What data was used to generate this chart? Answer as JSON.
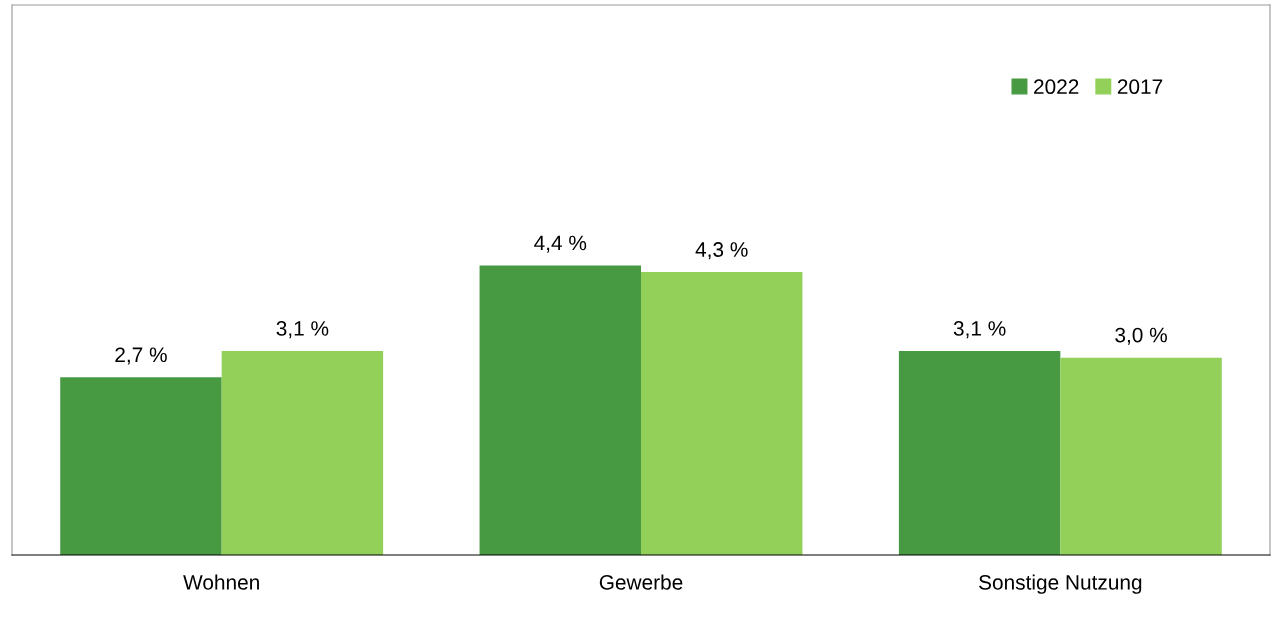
{
  "chart_data": {
    "type": "bar",
    "categories": [
      "Wohnen",
      "Gewerbe",
      "Sonstige Nutzung"
    ],
    "series": [
      {
        "name": "2022",
        "color": "#479a41",
        "values": [
          2.7,
          4.4,
          3.1
        ],
        "value_labels": [
          "2,7 %",
          "4,4 %",
          "3,1 %"
        ]
      },
      {
        "name": "2017",
        "color": "#92d05a",
        "values": [
          3.1,
          4.3,
          3.0
        ],
        "value_labels": [
          "3,1 %",
          "4,3 %",
          "3,0 %"
        ]
      }
    ],
    "legend": "top right",
    "grid": false,
    "tick_labels": "x"
  }
}
